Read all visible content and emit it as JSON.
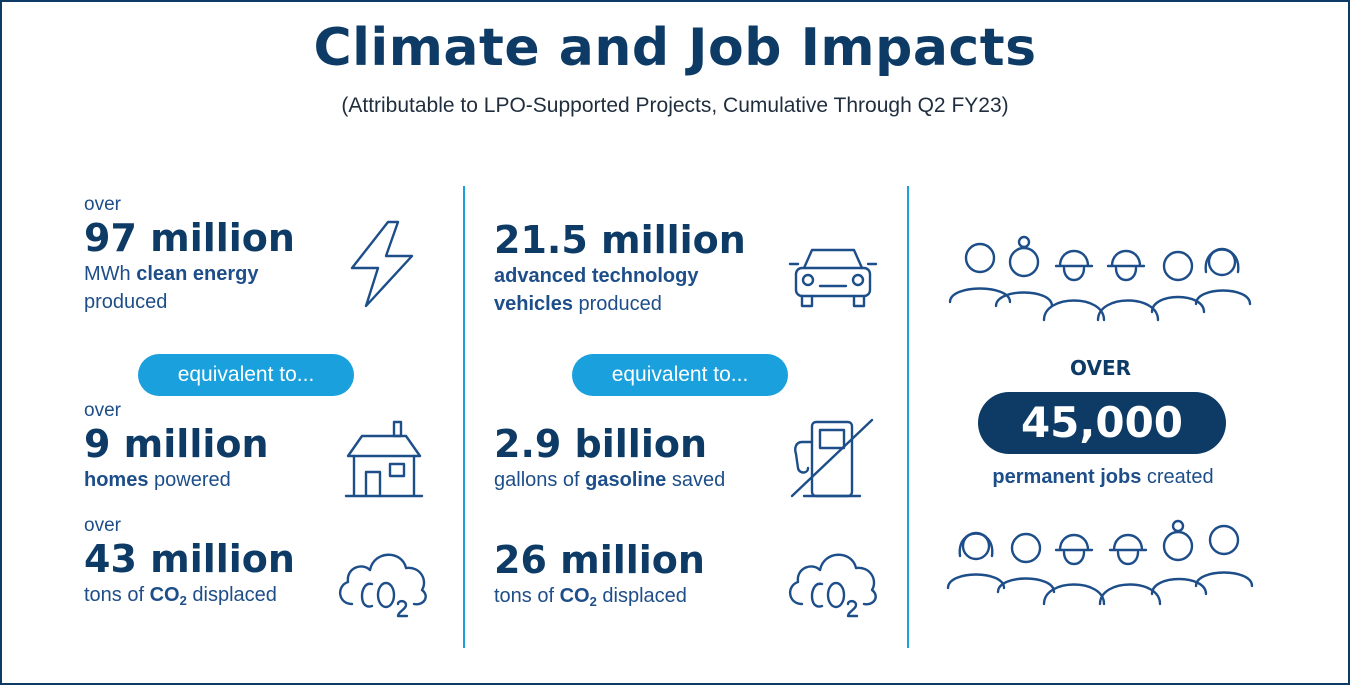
{
  "header": {
    "title": "Climate and Job Impacts",
    "subtitle": "(Attributable to LPO-Supported Projects, Cumulative Through Q2 FY23)"
  },
  "left": {
    "energy": {
      "over": "over",
      "value": "97 million",
      "desc_pre": "MWh ",
      "desc_bold": "clean energy",
      "desc_post": "produced",
      "icon": "lightning-icon"
    },
    "equivalent": "equivalent to...",
    "homes": {
      "over": "over",
      "value": "9 million",
      "desc_bold": "homes",
      "desc_post": " powered",
      "icon": "house-icon"
    },
    "co2": {
      "over": "over",
      "value": "43 million",
      "desc_pre": "tons of ",
      "desc_bold": "CO",
      "desc_sub": "2",
      "desc_post": " displaced",
      "icon": "co2-cloud-icon"
    }
  },
  "middle": {
    "vehicles": {
      "value": "21.5 million",
      "desc_bold1": "advanced technology",
      "desc_bold2": "vehicles",
      "desc_post": " produced",
      "icon": "car-icon"
    },
    "equivalent": "equivalent to...",
    "gasoline": {
      "value": "2.9 billion",
      "desc_pre": "gallons of ",
      "desc_bold": "gasoline",
      "desc_post": " saved",
      "icon": "no-gas-pump-icon"
    },
    "co2": {
      "value": "26 million",
      "desc_pre": "tons of ",
      "desc_bold": "CO",
      "desc_sub": "2",
      "desc_post": " displaced",
      "icon": "co2-cloud-icon"
    }
  },
  "right": {
    "over": "OVER",
    "value": "45,000",
    "desc_bold": "permanent jobs",
    "desc_post": " created",
    "icons": [
      "workers-group-icon",
      "workers-group-icon"
    ]
  },
  "colors": {
    "navy": "#0d3b66",
    "accent": "#1aa0dc",
    "text": "#1d4e89"
  }
}
